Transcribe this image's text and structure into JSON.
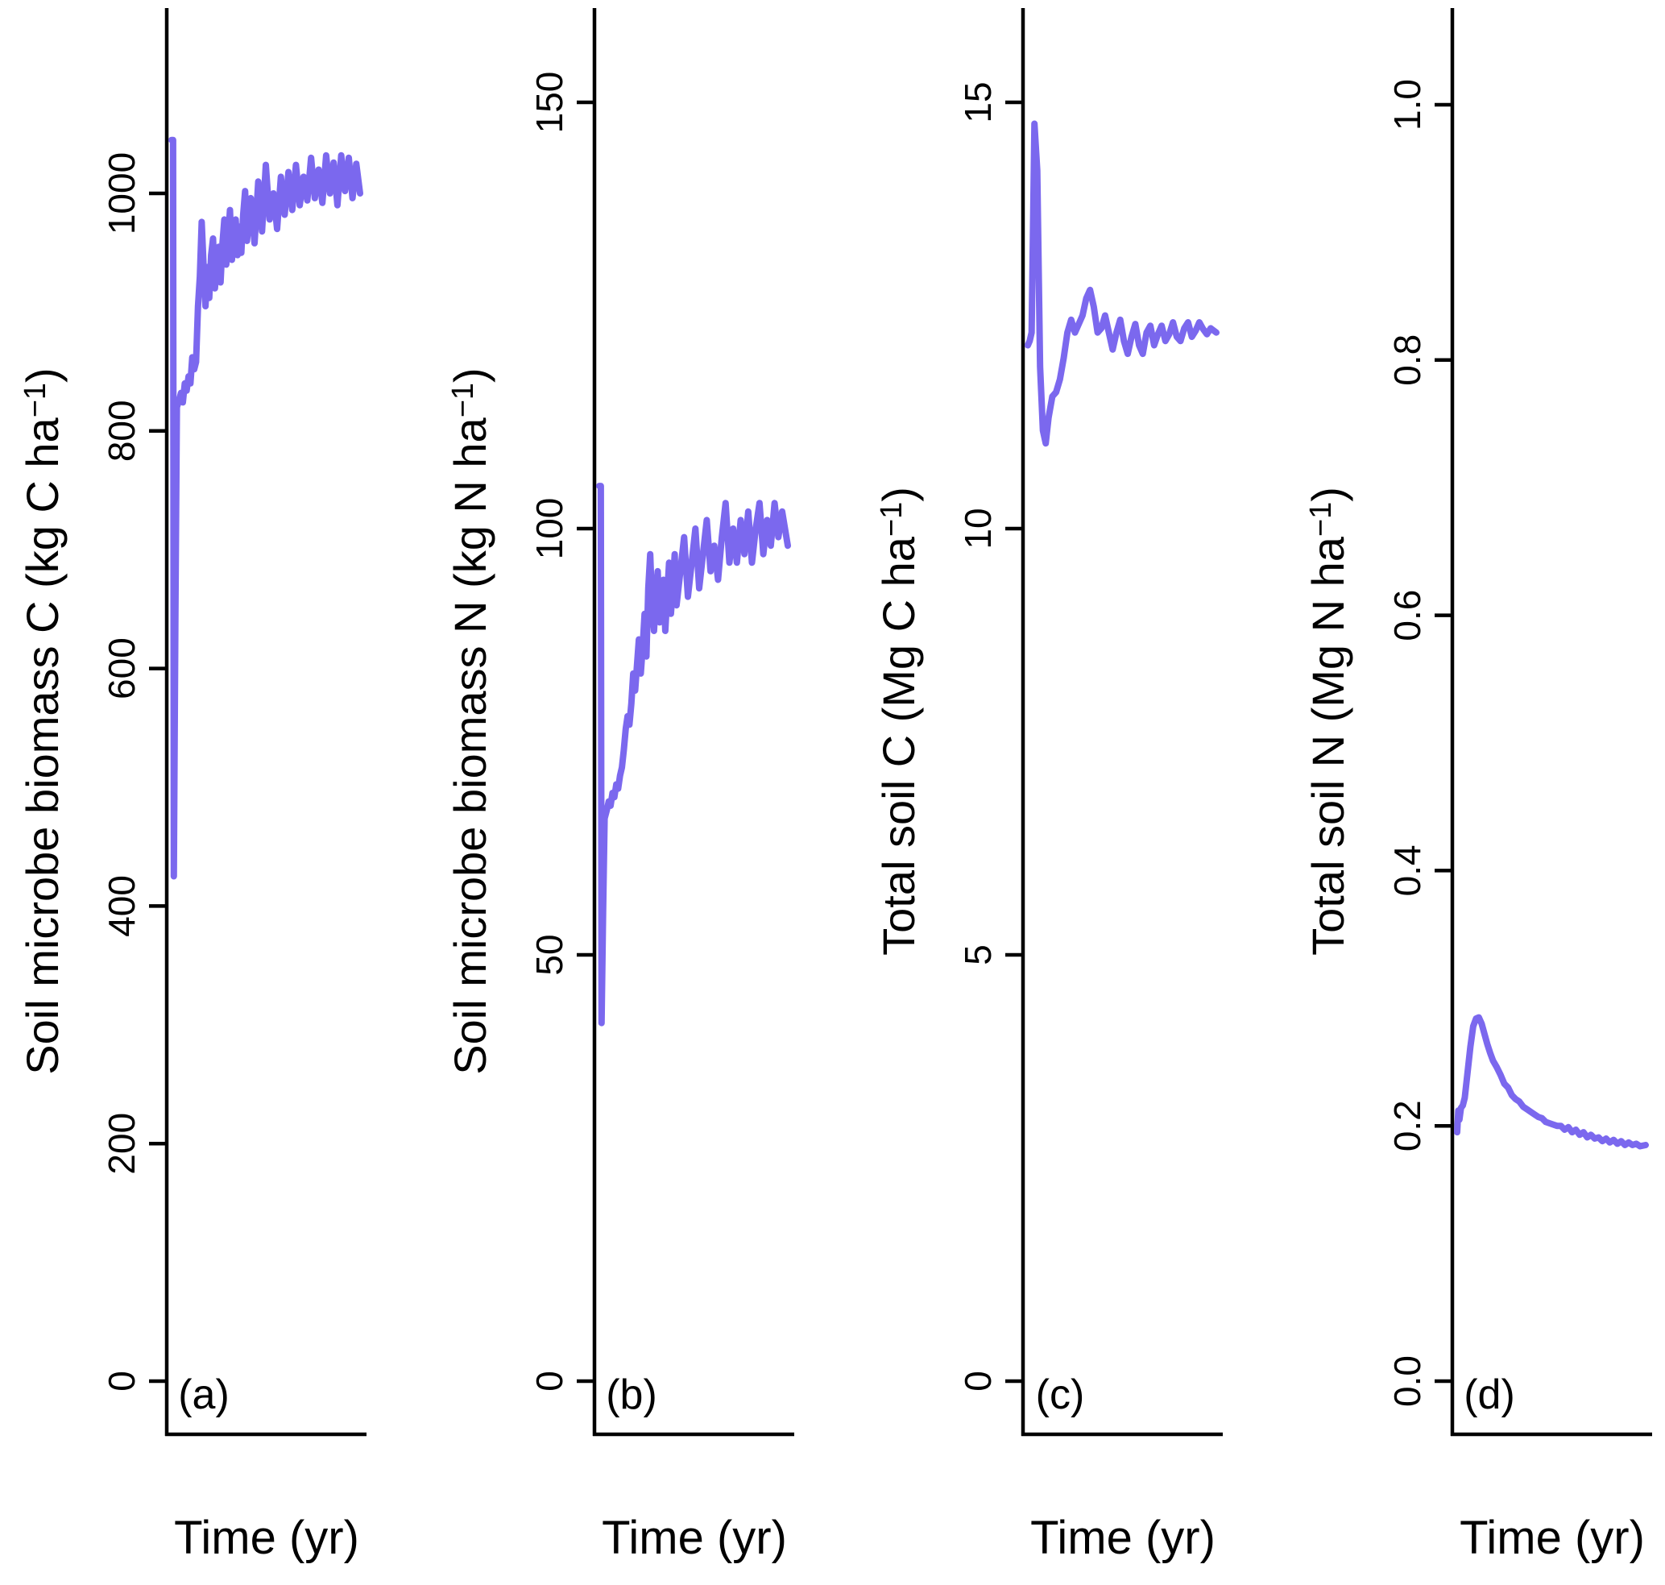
{
  "figure": {
    "background": "#ffffff",
    "axis_color": "#000000",
    "line_color": "#7b68ee",
    "xlabel": "Time (yr)"
  },
  "chart_data": [
    {
      "type": "line",
      "id": "a",
      "panel_label": "(a)",
      "xlabel": "Time (yr)",
      "ylabel": "Soil microbe biomass C (kg C ha−1)",
      "ylabel_parts": {
        "prefix": "Soil microbe biomass C (kg C ha",
        "sup": "−1",
        "suffix": ")"
      },
      "ylim": [
        0,
        1100
      ],
      "grid": false,
      "legend": "none",
      "yticks": [
        {
          "v": 0,
          "label": "0"
        },
        {
          "v": 200,
          "label": "200"
        },
        {
          "v": 400,
          "label": "400"
        },
        {
          "v": 600,
          "label": "600"
        },
        {
          "v": 800,
          "label": "800"
        },
        {
          "v": 1000,
          "label": "1000"
        }
      ],
      "points": [
        [
          0,
          1045
        ],
        [
          0.008,
          1045
        ],
        [
          0.012,
          425
        ],
        [
          0.02,
          640
        ],
        [
          0.028,
          820
        ],
        [
          0.04,
          826
        ],
        [
          0.05,
          832
        ],
        [
          0.06,
          824
        ],
        [
          0.07,
          840
        ],
        [
          0.08,
          834
        ],
        [
          0.09,
          846
        ],
        [
          0.1,
          840
        ],
        [
          0.11,
          862
        ],
        [
          0.12,
          852
        ],
        [
          0.13,
          858
        ],
        [
          0.14,
          905
        ],
        [
          0.15,
          930
        ],
        [
          0.16,
          976
        ],
        [
          0.17,
          938
        ],
        [
          0.18,
          905
        ],
        [
          0.19,
          938
        ],
        [
          0.2,
          912
        ],
        [
          0.21,
          948
        ],
        [
          0.22,
          962
        ],
        [
          0.23,
          920
        ],
        [
          0.24,
          940
        ],
        [
          0.25,
          955
        ],
        [
          0.26,
          925
        ],
        [
          0.27,
          958
        ],
        [
          0.28,
          978
        ],
        [
          0.29,
          940
        ],
        [
          0.3,
          962
        ],
        [
          0.31,
          986
        ],
        [
          0.32,
          944
        ],
        [
          0.33,
          958
        ],
        [
          0.34,
          978
        ],
        [
          0.35,
          948
        ],
        [
          0.36,
          972
        ],
        [
          0.37,
          950
        ],
        [
          0.38,
          982
        ],
        [
          0.39,
          1002
        ],
        [
          0.4,
          960
        ],
        [
          0.42,
          996
        ],
        [
          0.44,
          958
        ],
        [
          0.46,
          1010
        ],
        [
          0.48,
          968
        ],
        [
          0.5,
          1024
        ],
        [
          0.52,
          978
        ],
        [
          0.54,
          1000
        ],
        [
          0.56,
          970
        ],
        [
          0.58,
          1014
        ],
        [
          0.6,
          982
        ],
        [
          0.62,
          1018
        ],
        [
          0.64,
          986
        ],
        [
          0.66,
          1024
        ],
        [
          0.68,
          990
        ],
        [
          0.7,
          1014
        ],
        [
          0.72,
          994
        ],
        [
          0.74,
          1030
        ],
        [
          0.76,
          996
        ],
        [
          0.78,
          1020
        ],
        [
          0.8,
          992
        ],
        [
          0.82,
          1032
        ],
        [
          0.84,
          1000
        ],
        [
          0.86,
          1026
        ],
        [
          0.88,
          990
        ],
        [
          0.9,
          1032
        ],
        [
          0.92,
          1002
        ],
        [
          0.94,
          1030
        ],
        [
          0.96,
          996
        ],
        [
          0.98,
          1025
        ],
        [
          1.0,
          1000
        ]
      ]
    },
    {
      "type": "line",
      "id": "b",
      "panel_label": "(b)",
      "xlabel": "Time (yr)",
      "ylabel": "Soil microbe biomass N (kg N ha−1)",
      "ylabel_parts": {
        "prefix": "Soil microbe biomass N (kg N ha",
        "sup": "−1",
        "suffix": ")"
      },
      "ylim": [
        0,
        150
      ],
      "grid": false,
      "legend": "none",
      "yticks": [
        {
          "v": 0,
          "label": "0"
        },
        {
          "v": 50,
          "label": "50"
        },
        {
          "v": 100,
          "label": "100"
        },
        {
          "v": 150,
          "label": "150"
        }
      ],
      "points": [
        [
          0,
          105
        ],
        [
          0.008,
          105
        ],
        [
          0.012,
          42
        ],
        [
          0.02,
          55
        ],
        [
          0.028,
          66
        ],
        [
          0.04,
          67
        ],
        [
          0.05,
          68
        ],
        [
          0.06,
          67.5
        ],
        [
          0.07,
          69
        ],
        [
          0.08,
          68.5
        ],
        [
          0.09,
          70
        ],
        [
          0.1,
          69.5
        ],
        [
          0.11,
          71
        ],
        [
          0.12,
          72
        ],
        [
          0.13,
          74
        ],
        [
          0.14,
          76.5
        ],
        [
          0.15,
          78
        ],
        [
          0.16,
          77
        ],
        [
          0.17,
          79.5
        ],
        [
          0.18,
          83
        ],
        [
          0.19,
          81
        ],
        [
          0.2,
          84
        ],
        [
          0.21,
          87
        ],
        [
          0.22,
          83
        ],
        [
          0.23,
          86
        ],
        [
          0.24,
          90
        ],
        [
          0.25,
          85
        ],
        [
          0.26,
          93
        ],
        [
          0.27,
          97
        ],
        [
          0.28,
          91
        ],
        [
          0.29,
          88
        ],
        [
          0.3,
          92
        ],
        [
          0.31,
          95
        ],
        [
          0.32,
          89
        ],
        [
          0.33,
          91
        ],
        [
          0.34,
          94
        ],
        [
          0.35,
          88
        ],
        [
          0.36,
          92
        ],
        [
          0.37,
          96
        ],
        [
          0.38,
          90
        ],
        [
          0.39,
          93
        ],
        [
          0.4,
          97
        ],
        [
          0.41,
          91
        ],
        [
          0.43,
          95
        ],
        [
          0.45,
          99
        ],
        [
          0.47,
          92
        ],
        [
          0.49,
          96
        ],
        [
          0.51,
          100
        ],
        [
          0.53,
          93
        ],
        [
          0.55,
          97
        ],
        [
          0.57,
          101
        ],
        [
          0.59,
          95
        ],
        [
          0.61,
          98
        ],
        [
          0.63,
          94
        ],
        [
          0.65,
          99
        ],
        [
          0.67,
          103
        ],
        [
          0.69,
          96
        ],
        [
          0.71,
          100
        ],
        [
          0.73,
          96
        ],
        [
          0.75,
          101
        ],
        [
          0.77,
          97
        ],
        [
          0.79,
          102
        ],
        [
          0.81,
          96
        ],
        [
          0.83,
          100
        ],
        [
          0.85,
          103
        ],
        [
          0.87,
          97
        ],
        [
          0.89,
          101
        ],
        [
          0.91,
          98
        ],
        [
          0.93,
          103
        ],
        [
          0.95,
          99
        ],
        [
          0.97,
          102
        ],
        [
          1.0,
          98
        ]
      ]
    },
    {
      "type": "line",
      "id": "c",
      "panel_label": "(c)",
      "xlabel": "Time (yr)",
      "ylabel": "Total soil C (Mg C ha−1)",
      "ylabel_parts": {
        "prefix": "Total soil C (Mg C ha",
        "sup": "−1",
        "suffix": ")"
      },
      "ylim": [
        0,
        15
      ],
      "grid": false,
      "legend": "none",
      "yticks": [
        {
          "v": 0,
          "label": "0"
        },
        {
          "v": 5,
          "label": "5"
        },
        {
          "v": 10,
          "label": "10"
        },
        {
          "v": 15,
          "label": "15"
        }
      ],
      "points": [
        [
          0,
          12.15
        ],
        [
          0.01,
          12.2
        ],
        [
          0.02,
          12.3
        ],
        [
          0.035,
          14.75
        ],
        [
          0.05,
          14.2
        ],
        [
          0.065,
          11.9
        ],
        [
          0.08,
          11.15
        ],
        [
          0.095,
          11.0
        ],
        [
          0.11,
          11.3
        ],
        [
          0.13,
          11.55
        ],
        [
          0.15,
          11.6
        ],
        [
          0.17,
          11.75
        ],
        [
          0.19,
          12.0
        ],
        [
          0.21,
          12.3
        ],
        [
          0.23,
          12.45
        ],
        [
          0.25,
          12.3
        ],
        [
          0.27,
          12.4
        ],
        [
          0.29,
          12.5
        ],
        [
          0.31,
          12.7
        ],
        [
          0.33,
          12.8
        ],
        [
          0.35,
          12.6
        ],
        [
          0.37,
          12.3
        ],
        [
          0.39,
          12.35
        ],
        [
          0.41,
          12.5
        ],
        [
          0.43,
          12.3
        ],
        [
          0.45,
          12.1
        ],
        [
          0.47,
          12.3
        ],
        [
          0.49,
          12.45
        ],
        [
          0.51,
          12.2
        ],
        [
          0.53,
          12.05
        ],
        [
          0.55,
          12.25
        ],
        [
          0.57,
          12.4
        ],
        [
          0.59,
          12.15
        ],
        [
          0.61,
          12.05
        ],
        [
          0.63,
          12.3
        ],
        [
          0.65,
          12.38
        ],
        [
          0.67,
          12.15
        ],
        [
          0.69,
          12.28
        ],
        [
          0.71,
          12.38
        ],
        [
          0.73,
          12.2
        ],
        [
          0.75,
          12.28
        ],
        [
          0.77,
          12.42
        ],
        [
          0.79,
          12.25
        ],
        [
          0.81,
          12.2
        ],
        [
          0.83,
          12.35
        ],
        [
          0.85,
          12.42
        ],
        [
          0.87,
          12.25
        ],
        [
          0.89,
          12.32
        ],
        [
          0.91,
          12.42
        ],
        [
          0.93,
          12.34
        ],
        [
          0.95,
          12.28
        ],
        [
          0.97,
          12.35
        ],
        [
          1.0,
          12.3
        ]
      ]
    },
    {
      "type": "line",
      "id": "d",
      "panel_label": "(d)",
      "xlabel": "Time (yr)",
      "ylabel": "Total soil N (Mg N ha−1)",
      "ylabel_parts": {
        "prefix": "Total soil N (Mg N ha",
        "sup": "−1",
        "suffix": ")"
      },
      "ylim": [
        0,
        1.0
      ],
      "grid": false,
      "legend": "none",
      "yticks": [
        {
          "v": 0,
          "label": "0.0"
        },
        {
          "v": 0.2,
          "label": "0.2"
        },
        {
          "v": 0.4,
          "label": "0.4"
        },
        {
          "v": 0.6,
          "label": "0.6"
        },
        {
          "v": 0.8,
          "label": "0.8"
        },
        {
          "v": 1.0,
          "label": "1.0"
        }
      ],
      "points": [
        [
          0,
          0.195
        ],
        [
          0.006,
          0.212
        ],
        [
          0.012,
          0.205
        ],
        [
          0.02,
          0.214
        ],
        [
          0.03,
          0.216
        ],
        [
          0.04,
          0.222
        ],
        [
          0.055,
          0.242
        ],
        [
          0.07,
          0.262
        ],
        [
          0.085,
          0.278
        ],
        [
          0.1,
          0.284
        ],
        [
          0.115,
          0.285
        ],
        [
          0.13,
          0.28
        ],
        [
          0.145,
          0.272
        ],
        [
          0.16,
          0.264
        ],
        [
          0.175,
          0.257
        ],
        [
          0.19,
          0.251
        ],
        [
          0.21,
          0.246
        ],
        [
          0.23,
          0.24
        ],
        [
          0.25,
          0.233
        ],
        [
          0.27,
          0.23
        ],
        [
          0.29,
          0.224
        ],
        [
          0.31,
          0.221
        ],
        [
          0.33,
          0.219
        ],
        [
          0.35,
          0.215
        ],
        [
          0.37,
          0.213
        ],
        [
          0.39,
          0.211
        ],
        [
          0.41,
          0.209
        ],
        [
          0.43,
          0.207
        ],
        [
          0.45,
          0.206
        ],
        [
          0.47,
          0.203
        ],
        [
          0.49,
          0.202
        ],
        [
          0.51,
          0.201
        ],
        [
          0.53,
          0.2
        ],
        [
          0.55,
          0.2
        ],
        [
          0.57,
          0.197
        ],
        [
          0.59,
          0.199
        ],
        [
          0.61,
          0.195
        ],
        [
          0.63,
          0.197
        ],
        [
          0.65,
          0.193
        ],
        [
          0.67,
          0.195
        ],
        [
          0.69,
          0.191
        ],
        [
          0.71,
          0.193
        ],
        [
          0.73,
          0.19
        ],
        [
          0.75,
          0.191
        ],
        [
          0.77,
          0.188
        ],
        [
          0.79,
          0.19
        ],
        [
          0.81,
          0.187
        ],
        [
          0.83,
          0.189
        ],
        [
          0.85,
          0.186
        ],
        [
          0.87,
          0.188
        ],
        [
          0.89,
          0.185
        ],
        [
          0.91,
          0.187
        ],
        [
          0.93,
          0.185
        ],
        [
          0.95,
          0.186
        ],
        [
          0.97,
          0.184
        ],
        [
          1.0,
          0.185
        ]
      ]
    }
  ]
}
